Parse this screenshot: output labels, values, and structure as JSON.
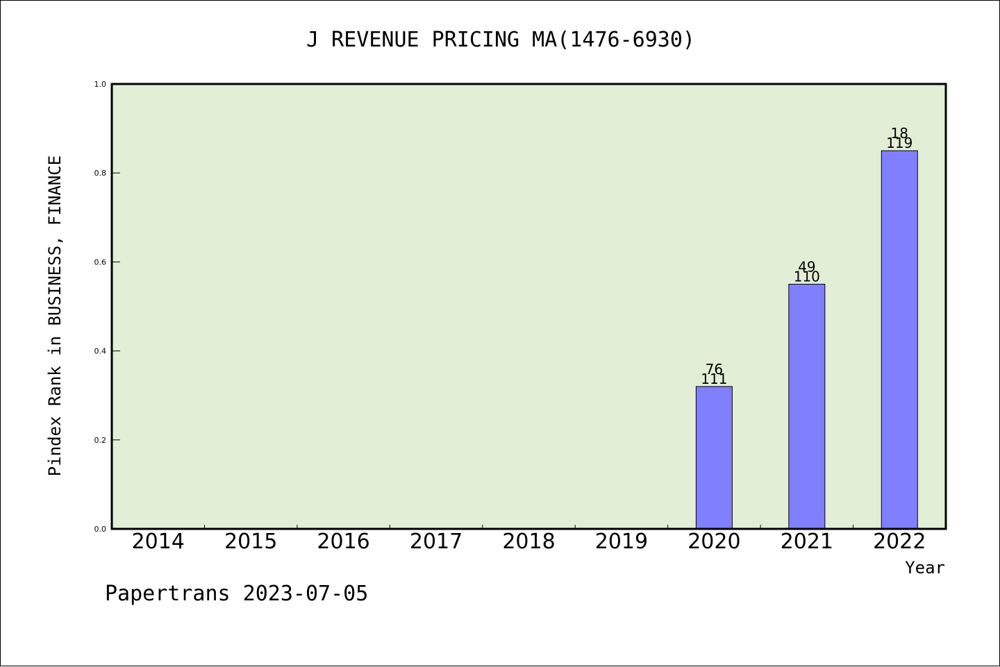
{
  "chart_data": {
    "type": "bar",
    "title": "J REVENUE PRICING MA(1476-6930)",
    "xlabel": "Year",
    "ylabel": "Pindex Rank in BUSINESS, FINANCE",
    "footer": "Papertrans 2023-07-05",
    "categories": [
      "2014",
      "2015",
      "2016",
      "2017",
      "2018",
      "2019",
      "2020",
      "2021",
      "2022"
    ],
    "values": [
      null,
      null,
      null,
      null,
      null,
      null,
      0.32,
      0.55,
      0.85
    ],
    "bar_labels_top": [
      "",
      "",
      "",
      "",
      "",
      "",
      "76",
      "49",
      "18"
    ],
    "bar_labels_bottom": [
      "",
      "",
      "",
      "",
      "",
      "",
      "111",
      "110",
      "119"
    ],
    "ylim": [
      0.0,
      1.0
    ],
    "yticks": [
      "0.0",
      "0.2",
      "0.4",
      "0.6",
      "0.8",
      "1.0"
    ],
    "grid": false,
    "colors": {
      "plot_background": "#e2efd6",
      "bar_fill": "#8080ff",
      "bar_stroke": "#000000"
    }
  }
}
